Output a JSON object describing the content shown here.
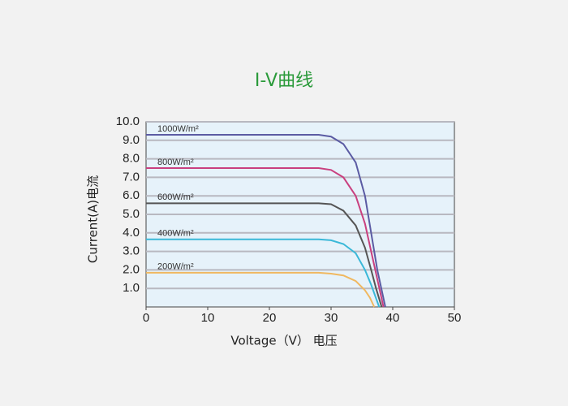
{
  "chart_data": {
    "type": "line",
    "title": "I-V曲线",
    "x_label": "Voltage（V） 电压",
    "y_label": "Current(A)电流",
    "xlim": [
      0,
      50
    ],
    "xticks": [
      0,
      10,
      20,
      30,
      40,
      50
    ],
    "ylim": [
      0,
      10
    ],
    "yticks": [
      {
        "value": 1,
        "label": "1.0"
      },
      {
        "value": 2,
        "label": "2.0"
      },
      {
        "value": 3,
        "label": "3.0"
      },
      {
        "value": 4,
        "label": "4.0"
      },
      {
        "value": 5,
        "label": "5.0"
      },
      {
        "value": 6,
        "label": "6.0"
      },
      {
        "value": 7,
        "label": "7.0"
      },
      {
        "value": 8,
        "label": "8.0"
      },
      {
        "value": 9,
        "label": "9.0"
      },
      {
        "value": 10,
        "label": "10.0"
      }
    ],
    "grid": true,
    "series": [
      {
        "name": "1000W/m²",
        "color": "#5b5ba3",
        "x": [
          0,
          28,
          30,
          32,
          34,
          35.5,
          36.5,
          37.5,
          38.8
        ],
        "values": [
          9.3,
          9.3,
          9.2,
          8.8,
          7.8,
          6.0,
          4.0,
          2.0,
          0
        ]
      },
      {
        "name": "800W/m²",
        "color": "#c9407f",
        "x": [
          0,
          28,
          30,
          32,
          34,
          35.5,
          36.5,
          37.5,
          38.5
        ],
        "values": [
          7.5,
          7.5,
          7.4,
          7.0,
          6.0,
          4.5,
          3.0,
          1.5,
          0
        ]
      },
      {
        "name": "600W/m²",
        "color": "#555555",
        "x": [
          0,
          28,
          30,
          32,
          34,
          35.5,
          36.5,
          37.3,
          38.2
        ],
        "values": [
          5.6,
          5.6,
          5.55,
          5.2,
          4.4,
          3.2,
          2.0,
          1.0,
          0
        ]
      },
      {
        "name": "400W/m²",
        "color": "#3ab8d8",
        "x": [
          0,
          28,
          30,
          32,
          34,
          35.5,
          36.5,
          37.8
        ],
        "values": [
          3.65,
          3.65,
          3.6,
          3.4,
          2.9,
          2.0,
          1.2,
          0
        ]
      },
      {
        "name": "200W/m²",
        "color": "#f0b860",
        "x": [
          0,
          28,
          30,
          32,
          34,
          35.5,
          36.3,
          37.0
        ],
        "values": [
          1.85,
          1.85,
          1.8,
          1.7,
          1.4,
          0.9,
          0.5,
          0
        ]
      }
    ]
  }
}
